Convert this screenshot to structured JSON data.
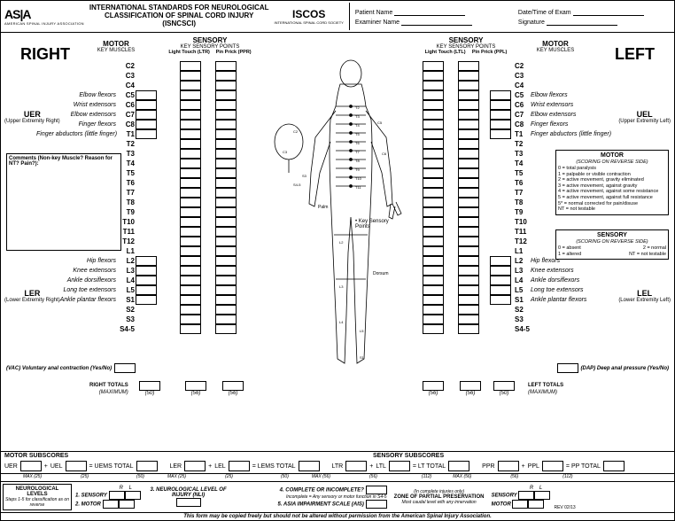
{
  "header": {
    "asia_logo": "AS|A",
    "asia_sub": "AMERICAN SPINAL INJURY ASSOCIATION",
    "title_l1": "INTERNATIONAL STANDARDS FOR NEUROLOGICAL",
    "title_l2": "CLASSIFICATION OF SPINAL CORD INJURY",
    "title_l3": "(ISNCSCI)",
    "iscos": "ISCOS",
    "iscos_sub": "INTERNATIONAL SPINAL CORD SOCIETY",
    "patient_name": "Patient Name",
    "date_exam": "Date/Time of Exam",
    "examiner": "Examiner Name",
    "signature": "Signature"
  },
  "sides": {
    "right": "RIGHT",
    "left": "LEFT"
  },
  "columns": {
    "motor": "MOTOR",
    "motor_sub": "KEY MUSCLES",
    "sensory": "SENSORY",
    "sensory_sub": "KEY SENSORY POINTS",
    "ltr": "Light Touch (LTR)",
    "ppr": "Pin Prick (PPR)",
    "ltl": "Light Touch (LTL)",
    "ppl": "Pin Prick (PPL)"
  },
  "extremities": {
    "uer": "UER",
    "uer_sub": "(Upper Extremity Right)",
    "uel": "UEL",
    "uel_sub": "(Upper Extremity Left)",
    "ler": "LER",
    "ler_sub": "(Lower Extremity Right)",
    "lel": "LEL",
    "lel_sub": "(Lower Extremity Left)"
  },
  "segments_c": [
    "C2",
    "C3",
    "C4"
  ],
  "segments_upper": [
    "C5",
    "C6",
    "C7",
    "C8",
    "T1"
  ],
  "muscles_upper": [
    "Elbow flexors",
    "Wrist extensors",
    "Elbow extensors",
    "Finger flexors",
    "Finger abductors (little finger)"
  ],
  "segments_t": [
    "T2",
    "T3",
    "T4",
    "T5",
    "T6",
    "T7",
    "T8",
    "T9",
    "T10",
    "T11",
    "T12",
    "L1"
  ],
  "segments_lower": [
    "L2",
    "L3",
    "L4",
    "L5",
    "S1"
  ],
  "muscles_lower": [
    "Hip flexors",
    "Knee extensors",
    "Ankle dorsiflexors",
    "Long toe extensors",
    "Ankle plantar flexors"
  ],
  "segments_s": [
    "S2",
    "S3",
    "S4-5"
  ],
  "comments_label": "Comments (Non-key Muscle? Reason for NT? Pain?):",
  "motor_scoring": {
    "title": "MOTOR",
    "sub": "(SCORING ON REVERSE SIDE)",
    "lines": [
      "0 = total paralysis",
      "1 = palpable or visible contraction",
      "2 = active movement, gravity eliminated",
      "3 = active movement, against gravity",
      "4 = active movement, against some resistance",
      "5 = active movement, against full resistance",
      "5* = normal corrected for pain/disuse",
      "NT = not testable"
    ]
  },
  "sensory_scoring": {
    "title": "SENSORY",
    "sub": "(SCORING ON REVERSE SIDE)",
    "l1a": "0 = absent",
    "l1b": "2 = normal",
    "l2a": "1 = altered",
    "l2b": "NT = not testable"
  },
  "key_sensory": "• Key Sensory Points",
  "vac": "(VAC) Voluntary anal contraction (Yes/No)",
  "dap": "(DAP) Deep anal pressure (Yes/No)",
  "totals": {
    "right": "RIGHT TOTALS",
    "left": "LEFT TOTALS",
    "max": "(MAXIMUM)",
    "m25": "(25)",
    "m50": "(50)",
    "m56": "(56)",
    "m112": "(112)"
  },
  "subscores": {
    "motor_title": "MOTOR SUBSCORES",
    "sensory_title": "SENSORY SUBSCORES",
    "uer": "UER",
    "uel": "UEL",
    "uems": "= UEMS TOTAL",
    "ler": "LER",
    "lel": "LEL",
    "lems": "= LEMS TOTAL",
    "ltr": "LTR",
    "ltl": "LTL",
    "lt": "= LT TOTAL",
    "ppr": "PPR",
    "ppl": "PPL",
    "pp": "= PP TOTAL",
    "max25": "MAX (25)",
    "max50": "(50)",
    "max56": "MAX (56)",
    "max112": "(112)",
    "plus": "+"
  },
  "bottom": {
    "neuro_levels": "NEUROLOGICAL LEVELS",
    "neuro_sub": "Steps 1-5 for classification as on reverse",
    "sensory1": "1. SENSORY",
    "motor2": "2. MOTOR",
    "r": "R",
    "l": "L",
    "nli": "3. NEUROLOGICAL LEVEL OF INJURY (NLI)",
    "complete": "4. COMPLETE OR INCOMPLETE?",
    "complete_sub": "Incomplete = Any sensory or motor function in S4-5",
    "ais": "5. ASIA IMPAIRMENT SCALE (AIS)",
    "zpp": "ZONE OF PARTIAL PRESERVATION",
    "zpp_sub": "(In complete injuries only)",
    "zpp_sub2": "Most caudal level with any innervation",
    "sensory_l": "SENSORY",
    "motor_l": "MOTOR",
    "rev": "REV 02/13"
  },
  "copy": "This form may be copied freely but should not be altered without permission from the American Spinal Injury Association.",
  "colors": {
    "border": "#000000",
    "bg": "#ffffff"
  }
}
